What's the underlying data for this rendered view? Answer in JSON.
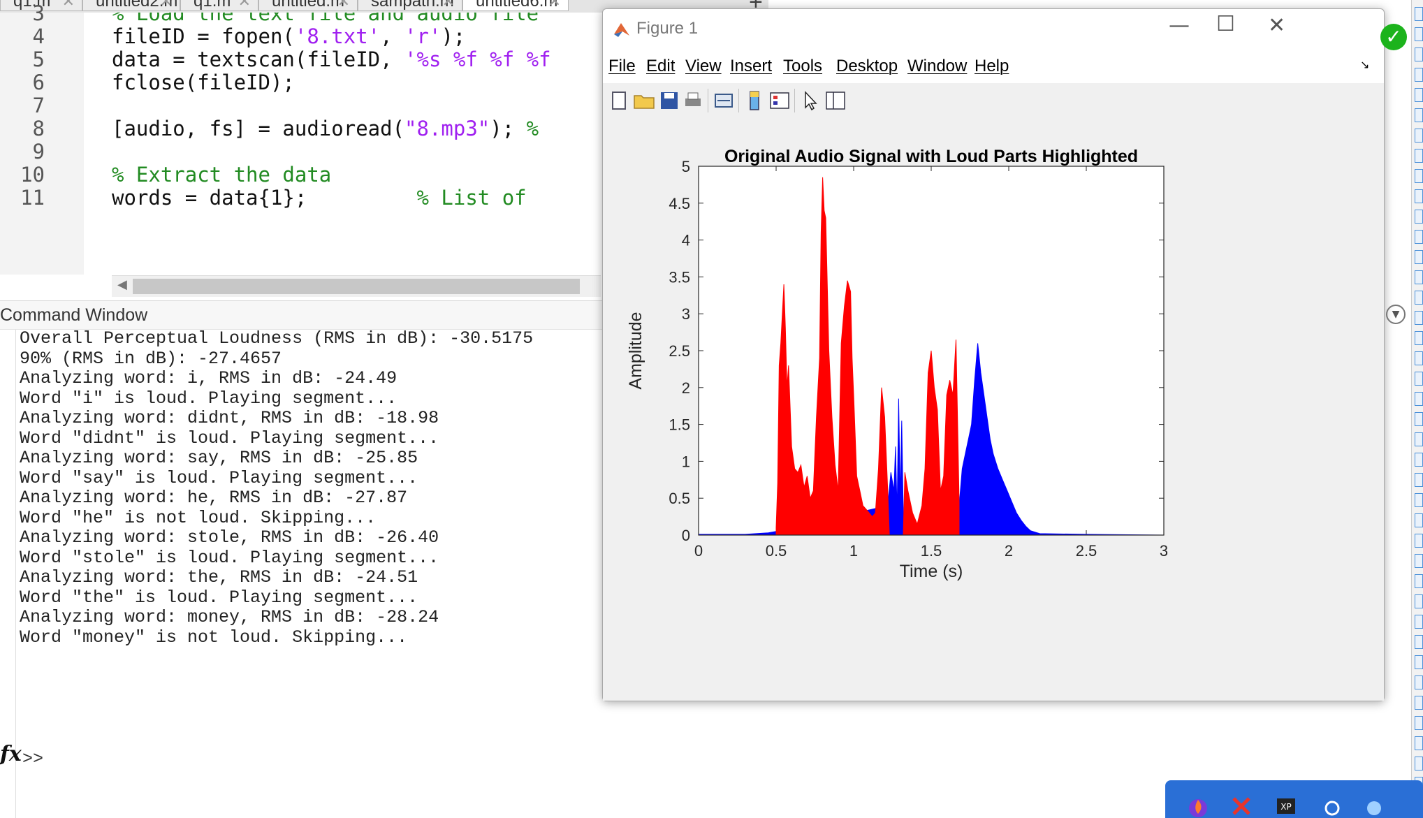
{
  "editor": {
    "tabs": [
      "q1.m",
      "untitled2.m",
      "q1.m",
      "untitled.m",
      "sampath.m",
      "untitled6.m"
    ],
    "lines": [
      {
        "num": "3",
        "segments": [
          {
            "t": "% Load the text file and audio file",
            "c": "cm"
          }
        ]
      },
      {
        "num": "4",
        "segments": [
          {
            "t": "fileID = fopen(",
            "c": ""
          },
          {
            "t": "'8.txt'",
            "c": "st"
          },
          {
            "t": ", ",
            "c": ""
          },
          {
            "t": "'r'",
            "c": "st"
          },
          {
            "t": ");",
            "c": ""
          }
        ]
      },
      {
        "num": "5",
        "segments": [
          {
            "t": "data = textscan(fileID, ",
            "c": ""
          },
          {
            "t": "'%s %f %f %f",
            "c": "st"
          }
        ]
      },
      {
        "num": "6",
        "segments": [
          {
            "t": "fclose(fileID);",
            "c": ""
          }
        ]
      },
      {
        "num": "7",
        "segments": []
      },
      {
        "num": "8",
        "segments": [
          {
            "t": "[audio, fs] = audioread(",
            "c": ""
          },
          {
            "t": "\"8.mp3\"",
            "c": "st"
          },
          {
            "t": "); ",
            "c": ""
          },
          {
            "t": "%",
            "c": "cm"
          }
        ]
      },
      {
        "num": "9",
        "segments": []
      },
      {
        "num": "10",
        "segments": [
          {
            "t": "% Extract the data",
            "c": "cm"
          }
        ]
      },
      {
        "num": "11",
        "segments": [
          {
            "t": "words = data{1};         ",
            "c": ""
          },
          {
            "t": "% List of",
            "c": "cm"
          }
        ]
      }
    ]
  },
  "command_window": {
    "title": "Command Window",
    "lines": [
      "Overall Perceptual Loudness (RMS in dB): -30.5175",
      "90% (RMS in dB): -27.4657",
      "Analyzing word: i, RMS in dB: -24.49",
      "Word \"i\" is loud. Playing segment...",
      "Analyzing word: didnt, RMS in dB: -18.98",
      "Word \"didnt\" is loud. Playing segment...",
      "Analyzing word: say, RMS in dB: -25.85",
      "Word \"say\" is loud. Playing segment...",
      "Analyzing word: he, RMS in dB: -27.87",
      "Word \"he\" is not loud. Skipping...",
      "Analyzing word: stole, RMS in dB: -26.40",
      "Word \"stole\" is loud. Playing segment...",
      "Analyzing word: the, RMS in dB: -24.51",
      "Word \"the\" is loud. Playing segment...",
      "Analyzing word: money, RMS in dB: -28.24",
      "Word \"money\" is not loud. Skipping..."
    ],
    "fx": "fx",
    "prompt": ">>"
  },
  "figure": {
    "window_title": "Figure 1",
    "menu": [
      "File",
      "Edit",
      "View",
      "Insert",
      "Tools",
      "Desktop",
      "Window",
      "Help"
    ],
    "toolbar_icons": [
      "new-figure-icon",
      "open-folder-icon",
      "save-icon",
      "print-icon",
      "link-icon",
      "colorbar-icon",
      "legend-icon",
      "pointer-icon",
      "property-editor-icon"
    ]
  },
  "chart_data": {
    "type": "area",
    "title": "Original Audio Signal with Loud Parts Highlighted",
    "xlabel": "Time (s)",
    "ylabel": "Amplitude",
    "xlim": [
      0,
      3
    ],
    "ylim": [
      0,
      5
    ],
    "xticks": [
      0,
      0.5,
      1,
      1.5,
      2,
      2.5,
      3
    ],
    "yticks": [
      0,
      0.5,
      1,
      1.5,
      2,
      2.5,
      3,
      3.5,
      4,
      4.5,
      5
    ],
    "xtick_labels": [
      "0",
      "0.5",
      "1",
      "1.5",
      "2",
      "2.5",
      "3"
    ],
    "ytick_labels": [
      "0",
      "0.5",
      "1",
      "1.5",
      "2",
      "2.5",
      "3",
      "3.5",
      "4",
      "4.5",
      "5"
    ],
    "series": [
      {
        "color": "#0000ff",
        "x": [
          0,
          0.3,
          0.45,
          0.5,
          1.22,
          1.24,
          1.26,
          1.27,
          1.28,
          1.29,
          1.3,
          1.31,
          1.32,
          1.33,
          1.68,
          1.7,
          1.72,
          1.74,
          1.76,
          1.78,
          1.8,
          1.82,
          1.84,
          1.86,
          1.88,
          1.9,
          1.93,
          1.96,
          1.99,
          2.02,
          2.05,
          2.08,
          2.11,
          2.14,
          2.2,
          2.5,
          3
        ],
        "y": [
          0.01,
          0.01,
          0.03,
          0.05,
          0.4,
          0.85,
          0.6,
          1.2,
          0.3,
          1.85,
          0.5,
          1.55,
          0.3,
          0.05,
          0.4,
          0.9,
          1.1,
          1.3,
          1.5,
          2.1,
          2.6,
          2.2,
          1.9,
          1.6,
          1.3,
          1.1,
          0.9,
          0.75,
          0.6,
          0.45,
          0.3,
          0.2,
          0.12,
          0.06,
          0.02,
          0.01,
          0
        ]
      },
      {
        "color": "#ff0000",
        "x": [
          0.5,
          0.51,
          0.52,
          0.53,
          0.55,
          0.56,
          0.57,
          0.58,
          0.6,
          0.62,
          0.64,
          0.66,
          0.68,
          0.7,
          0.72,
          0.74,
          0.76,
          0.78,
          0.79,
          0.8,
          0.81,
          0.82,
          0.84,
          0.86,
          0.88,
          0.9,
          0.92,
          0.94,
          0.96,
          0.98,
          0.99,
          1.0,
          1.02,
          1.04,
          1.06,
          1.08,
          1.1,
          1.12,
          1.14,
          1.16,
          1.18,
          1.2,
          1.22,
          1.23,
          1.32,
          1.33,
          1.35,
          1.38,
          1.41,
          1.44,
          1.46,
          1.48,
          1.5,
          1.52,
          1.54,
          1.56,
          1.58,
          1.6,
          1.62,
          1.64,
          1.66,
          1.68
        ],
        "y": [
          0.1,
          0.7,
          2.3,
          2.6,
          3.4,
          2.8,
          2.0,
          2.3,
          1.2,
          0.9,
          0.85,
          0.95,
          0.65,
          0.8,
          0.5,
          0.6,
          1.6,
          2.4,
          4.1,
          4.85,
          4.4,
          4.3,
          2.5,
          1.6,
          0.95,
          0.6,
          2.6,
          3.1,
          3.45,
          3.3,
          2.4,
          1.9,
          0.8,
          0.6,
          0.4,
          0.35,
          0.3,
          0.25,
          0.3,
          0.9,
          2.0,
          1.6,
          0.6,
          0.0,
          0.0,
          0.85,
          0.6,
          0.3,
          0.15,
          0.4,
          0.9,
          2.2,
          2.5,
          2.0,
          1.7,
          0.6,
          0.8,
          1.9,
          2.1,
          1.9,
          2.65,
          0.45
        ]
      }
    ]
  }
}
